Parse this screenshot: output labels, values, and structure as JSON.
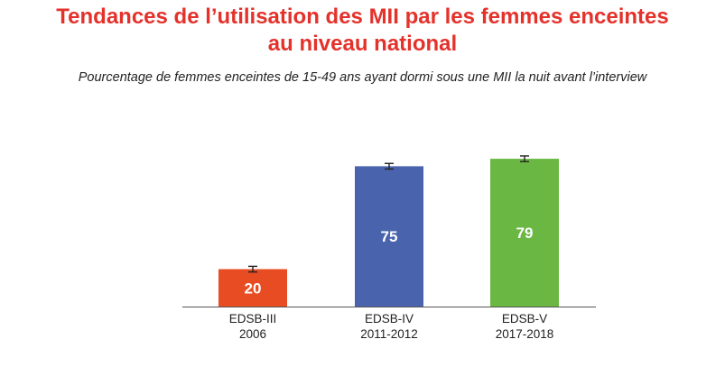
{
  "chart_data": {
    "type": "bar",
    "title": "Tendances de l’utilisation des MII par les femmes enceintes au niveau national",
    "title_lines": [
      "Tendances de l’utilisation des MII par les femmes enceintes",
      "au niveau national"
    ],
    "subtitle": "Pourcentage de femmes enceintes de 15-49 ans ayant dormi sous une MII la nuit avant l’interview",
    "categories": [
      {
        "line1": "EDSB-III",
        "line2": "2006"
      },
      {
        "line1": "EDSB-IV",
        "line2": "2011-2012"
      },
      {
        "line1": "EDSB-V",
        "line2": "2017-2018"
      }
    ],
    "values": [
      20,
      75,
      79
    ],
    "data_labels": [
      "20",
      "75",
      "79"
    ],
    "error_bars": [
      [
        18.5,
        21.5
      ],
      [
        73.5,
        76.5
      ],
      [
        77.5,
        80.5
      ]
    ],
    "colors": [
      "#e84c22",
      "#4a63ad",
      "#6ab843"
    ],
    "ylim": [
      0,
      100
    ],
    "grid": false,
    "legend": "none"
  }
}
